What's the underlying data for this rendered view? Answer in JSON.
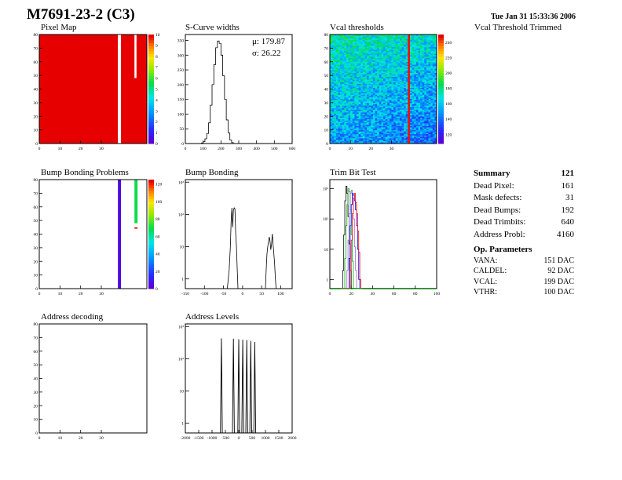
{
  "header": {
    "module": "M7691-23-2 (C3)",
    "timestamp": "Tue Jan 31 15:33:36 2006"
  },
  "panel_titles": {
    "pixel_map": "Pixel Map",
    "scurve": "S-Curve widths",
    "vcal": "Vcal thresholds",
    "vcal_trimmed": "Vcal Threshold Trimmed",
    "bump_problems": "Bump Bonding Problems",
    "bump": "Bump Bonding",
    "trim": "Trim Bit Test",
    "addr_decoding": "Address decoding",
    "addr_levels": "Address Levels"
  },
  "stats": {
    "mu": "μ: 179.87",
    "sigma": "σ: 26.22"
  },
  "summary": {
    "title": "Summary",
    "total": "121",
    "rows": [
      {
        "label": "Dead Pixel:",
        "value": "161"
      },
      {
        "label": "Mask defects:",
        "value": "31"
      },
      {
        "label": "Dead Bumps:",
        "value": "192"
      },
      {
        "label": "Dead Trimbits:",
        "value": "640"
      },
      {
        "label": "Address Probl:",
        "value": "4160"
      }
    ]
  },
  "op_params": {
    "title": "Op. Parameters",
    "rows": [
      {
        "label": "VANA:",
        "value": "151 DAC"
      },
      {
        "label": "CALDEL:",
        "value": "92 DAC"
      },
      {
        "label": "VCAL:",
        "value": "199 DAC"
      },
      {
        "label": "VTHR:",
        "value": "100 DAC"
      }
    ]
  },
  "chart_data": [
    {
      "id": "pixel_map",
      "type": "heatmap",
      "x_ticks": [
        "0",
        "10",
        "20",
        "30"
      ],
      "y_ticks": [
        "0",
        "10",
        "20",
        "30",
        "40",
        "50",
        "60",
        "70",
        "80"
      ],
      "xlim": [
        0,
        52
      ],
      "ylim": [
        0,
        80
      ],
      "z_ticks": [
        "0",
        "1",
        "2",
        "3",
        "4",
        "5",
        "6",
        "7",
        "8",
        "9",
        "10"
      ],
      "zlim": [
        0,
        10
      ],
      "dead_columns": [
        38
      ],
      "dead_segments": [
        {
          "col": 46,
          "from": 48,
          "to": 80
        }
      ],
      "fill_value": 10
    },
    {
      "id": "scurve",
      "type": "line",
      "x_ticks": [
        "0",
        "100",
        "200",
        "300",
        "400",
        "500",
        "600"
      ],
      "y_ticks": [
        "0",
        "50",
        "100",
        "150",
        "200",
        "250",
        "300",
        "350"
      ],
      "xlim": [
        0,
        600
      ],
      "ylim": [
        0,
        370
      ],
      "bin_width": 10,
      "x": [
        80,
        90,
        100,
        110,
        120,
        130,
        140,
        150,
        160,
        170,
        180,
        190,
        200,
        210,
        220,
        230,
        240,
        250,
        260,
        270
      ],
      "values": [
        0,
        2,
        6,
        16,
        34,
        70,
        130,
        200,
        268,
        325,
        348,
        340,
        300,
        230,
        150,
        80,
        36,
        12,
        3,
        0
      ]
    },
    {
      "id": "vcal",
      "type": "heatmap",
      "x_ticks": [
        "0",
        "10",
        "20",
        "30"
      ],
      "y_ticks": [
        "0",
        "10",
        "20",
        "30",
        "40",
        "50",
        "60",
        "70",
        "80"
      ],
      "xlim": [
        0,
        52
      ],
      "ylim": [
        0,
        80
      ],
      "z_ticks": [
        "120",
        "140",
        "160",
        "180",
        "200",
        "220",
        "240"
      ],
      "zlim": [
        108,
        250
      ],
      "hot_column": 38,
      "hot_value": 248,
      "typical_range": [
        125,
        200
      ]
    },
    {
      "id": "bump_problems",
      "type": "heatmap",
      "x_ticks": [
        "0",
        "10",
        "20",
        "30"
      ],
      "y_ticks": [
        "0",
        "10",
        "20",
        "30",
        "40",
        "50",
        "60",
        "70",
        "80"
      ],
      "xlim": [
        0,
        52
      ],
      "ylim": [
        0,
        80
      ],
      "z_ticks": [
        "0",
        "20",
        "40",
        "60",
        "80",
        "100",
        "120"
      ],
      "zlim": [
        0,
        125
      ],
      "cells": [
        {
          "col": 38,
          "from": 0,
          "to": 80,
          "value": 4
        },
        {
          "col": 46,
          "from": 48,
          "to": 80,
          "value": 70
        },
        {
          "col": 46,
          "from": 44,
          "to": 45,
          "value": 125
        }
      ]
    },
    {
      "id": "bump",
      "type": "line",
      "log_y": true,
      "x_ticks": [
        "-150",
        "-100",
        "-50",
        "0",
        "50",
        "100"
      ],
      "y_ticks": [
        "1",
        "10",
        "10²",
        "10³"
      ],
      "xlim": [
        -150,
        130
      ],
      "ylim": [
        0.5,
        1200
      ],
      "x": [
        -150,
        -40,
        -35,
        -32,
        -30,
        -28,
        -26,
        -24,
        -22,
        -20,
        -18,
        -16,
        -14,
        -12,
        -10,
        60,
        62,
        64,
        66,
        68,
        70,
        72,
        74,
        76,
        78,
        80,
        82,
        84,
        86,
        88,
        130
      ],
      "values": [
        0,
        0,
        2,
        10,
        60,
        160,
        40,
        130,
        160,
        150,
        25,
        10,
        2,
        0,
        0,
        0,
        2,
        6,
        10,
        14,
        20,
        15,
        8,
        12,
        25,
        12,
        6,
        3,
        1,
        0,
        0
      ]
    },
    {
      "id": "trim",
      "type": "line",
      "log_y": true,
      "x_ticks": [
        "0",
        "20",
        "40",
        "60",
        "80",
        "100"
      ],
      "y_ticks": [
        "1",
        "10",
        "10²",
        "10³"
      ],
      "xlim": [
        0,
        100
      ],
      "ylim": [
        0.5,
        2000
      ],
      "x": [
        10,
        11,
        12,
        13,
        14,
        15,
        16,
        17,
        18,
        19,
        20,
        21,
        22,
        23,
        24,
        25,
        26,
        27,
        28,
        29,
        30
      ],
      "series": [
        {
          "name": "",
          "color": "#000000",
          "values": [
            0,
            0,
            2,
            30,
            400,
            1200,
            700,
            120,
            15,
            2,
            0,
            0,
            0,
            0,
            0,
            0,
            0,
            0,
            0,
            0,
            0
          ]
        },
        {
          "name": "",
          "color": "#00aa00",
          "values": [
            0,
            0,
            0,
            0,
            5,
            60,
            300,
            1000,
            800,
            200,
            30,
            4,
            0,
            0,
            0,
            0,
            0,
            0,
            0,
            0,
            0
          ]
        },
        {
          "name": "",
          "color": "#9966cc",
          "values": [
            0,
            0,
            0,
            0,
            0,
            0,
            2,
            20,
            150,
            700,
            900,
            500,
            100,
            12,
            2,
            0,
            0,
            0,
            0,
            0,
            0
          ]
        },
        {
          "name": "",
          "color": "#0000ff",
          "values": [
            0,
            0,
            0,
            0,
            0,
            0,
            0,
            0,
            5,
            60,
            300,
            700,
            600,
            400,
            200,
            60,
            10,
            1,
            0,
            0,
            0
          ]
        },
        {
          "name": "",
          "color": "#ff0000",
          "values": [
            0,
            0,
            0,
            0,
            0,
            0,
            0,
            0,
            0,
            2,
            20,
            150,
            500,
            700,
            350,
            150,
            40,
            8,
            1,
            0,
            0
          ]
        }
      ]
    },
    {
      "id": "addr_decoding",
      "type": "heatmap",
      "x_ticks": [
        "0",
        "10",
        "20",
        "30"
      ],
      "y_ticks": [
        "0",
        "10",
        "20",
        "30",
        "40",
        "50",
        "60",
        "70",
        "80"
      ],
      "xlim": [
        0,
        52
      ],
      "ylim": [
        0,
        80
      ],
      "cells": []
    },
    {
      "id": "addr_levels",
      "type": "line",
      "log_y": true,
      "x_ticks": [
        "-2000",
        "-1500",
        "-1000",
        "-500",
        "0",
        "500",
        "1000",
        "1500",
        "2000"
      ],
      "y_ticks": [
        "1",
        "10",
        "10²",
        "10³"
      ],
      "xlim": [
        -2000,
        2000
      ],
      "ylim": [
        0.5,
        1200
      ],
      "peaks": [
        {
          "x": -650,
          "height": 430
        },
        {
          "x": -200,
          "height": 420
        },
        {
          "x": 0,
          "height": 400
        },
        {
          "x": 150,
          "height": 390
        },
        {
          "x": 300,
          "height": 380
        },
        {
          "x": 450,
          "height": 360
        },
        {
          "x": 600,
          "height": 330
        }
      ]
    }
  ]
}
